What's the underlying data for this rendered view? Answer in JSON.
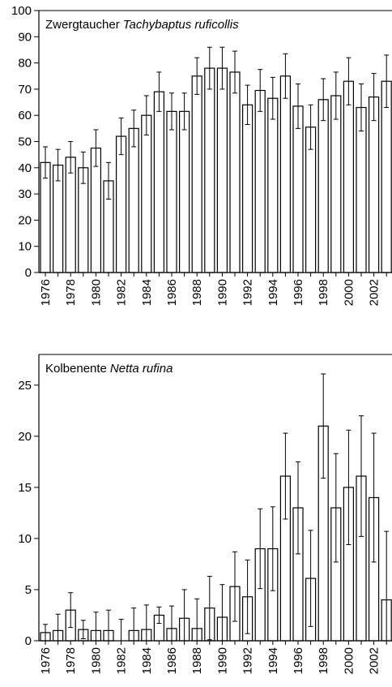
{
  "chart_data": [
    {
      "type": "bar",
      "title": "Zwergtaucher",
      "species": "Tachybaptus ruficollis",
      "categories": [
        "1976",
        null,
        "1978",
        null,
        "1980",
        null,
        "1982",
        null,
        "1984",
        null,
        "1986",
        null,
        "1988",
        null,
        "1990",
        null,
        "1992",
        null,
        "1994",
        null,
        "1996",
        null,
        "1998",
        null,
        "2000",
        null,
        "2002",
        null
      ],
      "values": [
        42,
        41,
        44,
        40,
        47.5,
        35,
        52,
        55,
        60,
        69,
        61.5,
        61.5,
        75,
        78,
        78,
        76.5,
        64,
        69.5,
        66.5,
        75,
        63.5,
        55.5,
        66,
        67.5,
        73,
        63,
        67,
        73
      ],
      "errors": [
        6,
        6,
        6,
        6,
        7,
        7,
        7,
        7,
        7.5,
        7.5,
        7,
        7,
        7,
        8,
        8,
        8,
        7.5,
        8,
        8,
        8.5,
        8.5,
        8.5,
        8,
        9,
        9,
        9,
        9,
        10
      ],
      "color": "#ffffff",
      "ylim": [
        0,
        100
      ],
      "yticks": [
        0,
        10,
        20,
        30,
        40,
        50,
        60,
        70,
        80,
        90,
        100
      ]
    },
    {
      "type": "bar",
      "title": "Kolbenente",
      "species": "Netta rufina",
      "categories": [
        "1976",
        null,
        "1978",
        null,
        "1980",
        null,
        "1982",
        null,
        "1984",
        null,
        "1986",
        null,
        "1988",
        null,
        "1990",
        null,
        "1992",
        null,
        "1994",
        null,
        "1996",
        null,
        "1998",
        null,
        "2000",
        null,
        "2002",
        null
      ],
      "values": [
        0.8,
        1.0,
        3.0,
        1.1,
        1.0,
        1.0,
        0,
        1.0,
        1.1,
        2.5,
        1.2,
        2.2,
        1.2,
        3.2,
        2.3,
        5.3,
        4.3,
        9.0,
        9.0,
        16.1,
        13.0,
        6.1,
        21.0,
        13.0,
        15.0,
        16.1,
        14.0,
        4.0
      ],
      "errors": [
        0.8,
        1.6,
        1.7,
        0.9,
        1.8,
        2.0,
        2.1,
        2.2,
        2.4,
        0.8,
        2.2,
        2.8,
        2.9,
        3.1,
        3.2,
        3.4,
        3.6,
        3.9,
        4.1,
        4.2,
        4.5,
        4.7,
        5.1,
        5.3,
        5.6,
        5.9,
        6.3,
        6.7
      ],
      "color": "#ffffff",
      "ylim": [
        0,
        28
      ],
      "yticks": [
        0,
        5,
        10,
        15,
        20,
        25
      ]
    }
  ]
}
